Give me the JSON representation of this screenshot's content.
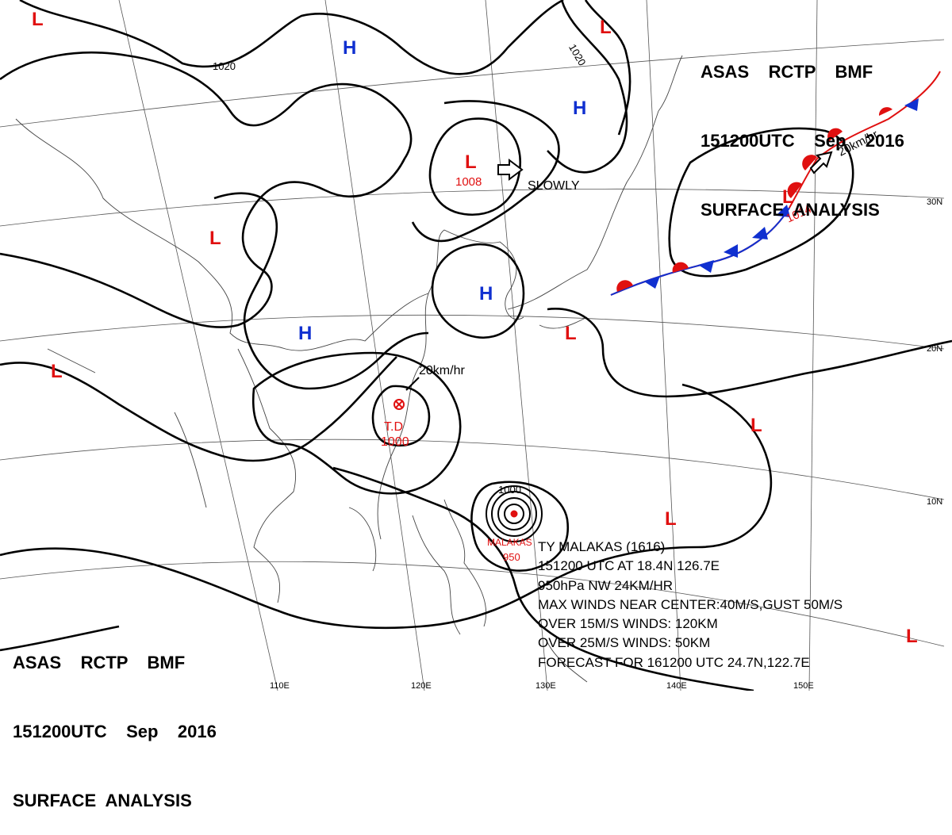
{
  "header": {
    "line1": "ASAS    RCTP    BMF",
    "line2": "151200UTC    Sep    2016",
    "line3": "SURFACE  ANALYSIS"
  },
  "pressure_centers": [
    {
      "type": "H",
      "color": "#1030d0"
    },
    {
      "type": "H",
      "color": "#1030d0"
    },
    {
      "type": "H",
      "color": "#1030d0"
    },
    {
      "type": "H",
      "color": "#1030d0"
    },
    {
      "type": "L",
      "color": "#e01010"
    },
    {
      "type": "L",
      "color": "#e01010"
    },
    {
      "type": "L",
      "color": "#e01010"
    },
    {
      "type": "L",
      "color": "#e01010"
    },
    {
      "type": "L",
      "color": "#e01010"
    },
    {
      "type": "L",
      "color": "#e01010"
    },
    {
      "type": "L",
      "color": "#e01010"
    },
    {
      "type": "L",
      "color": "#e01010"
    },
    {
      "type": "L",
      "color": "#e01010"
    },
    {
      "type": "L",
      "color": "#e01010"
    }
  ],
  "labels": {
    "low_central": "1008",
    "slowly": "SLOWLY",
    "front_low": "1014",
    "front_speed": "20km/hr",
    "td_speed": "20km/hr",
    "td_name": "T.D",
    "td_pressure": "1000",
    "typhoon_name": "MALAKAS",
    "typhoon_pressure": "950",
    "isobar_1000": "1000",
    "isobar_1020_a": "1020",
    "isobar_1020_b": "1020",
    "lat_30": "30N",
    "lat_20": "20N",
    "lat_10": "10N",
    "lon_110": "110E",
    "lon_120": "120E",
    "lon_130": "130E",
    "lon_140": "140E",
    "lon_150": "150E"
  },
  "typhoon_info": [
    "TY MALAKAS (1616)",
    "151200 UTC AT 18.4N 126.7E",
    "950hPa NW 24KM/HR",
    "MAX WINDS NEAR CENTER:40M/S,GUST 50M/S",
    "OVER 15M/S WINDS: 120KM",
    "OVER 25M/S WINDS: 50KM",
    "FORECAST FOR 161200 UTC 24.7N,122.7E"
  ],
  "colors": {
    "high": "#1030d0",
    "low": "#e01010",
    "front_warm": "#e01010",
    "front_cold": "#1030d0",
    "isobar": "#000000"
  }
}
